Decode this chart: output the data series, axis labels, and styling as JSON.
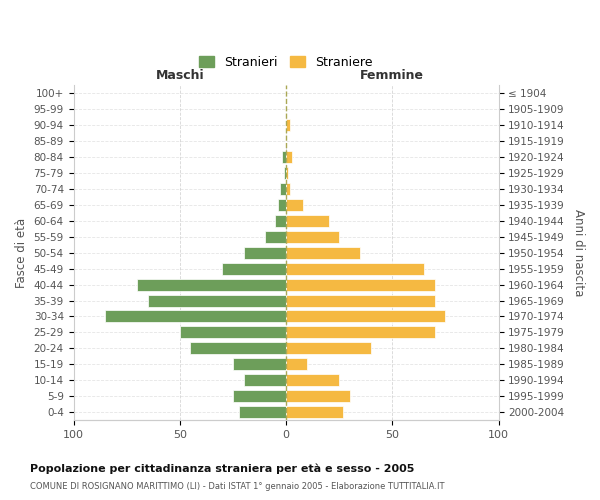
{
  "age_groups": [
    "100+",
    "95-99",
    "90-94",
    "85-89",
    "80-84",
    "75-79",
    "70-74",
    "65-69",
    "60-64",
    "55-59",
    "50-54",
    "45-49",
    "40-44",
    "35-39",
    "30-34",
    "25-29",
    "20-24",
    "15-19",
    "10-14",
    "5-9",
    "0-4"
  ],
  "birth_years": [
    "≤ 1904",
    "1905-1909",
    "1910-1914",
    "1915-1919",
    "1920-1924",
    "1925-1929",
    "1930-1934",
    "1935-1939",
    "1940-1944",
    "1945-1949",
    "1950-1954",
    "1955-1959",
    "1960-1964",
    "1965-1969",
    "1970-1974",
    "1975-1979",
    "1980-1984",
    "1985-1989",
    "1990-1994",
    "1995-1999",
    "2000-2004"
  ],
  "maschi": [
    0,
    0,
    0,
    0,
    2,
    1,
    3,
    4,
    5,
    10,
    20,
    30,
    70,
    65,
    85,
    50,
    45,
    25,
    20,
    25,
    22
  ],
  "femmine": [
    0,
    0,
    2,
    0,
    3,
    1,
    2,
    8,
    20,
    25,
    35,
    65,
    70,
    70,
    75,
    70,
    40,
    10,
    25,
    30,
    27
  ],
  "maschi_color": "#6d9e5a",
  "femmine_color": "#f5b942",
  "title_main": "Popolazione per cittadinanza straniera per età e sesso - 2005",
  "title_sub": "COMUNE DI ROSIGNANO MARITTIMO (LI) - Dati ISTAT 1° gennaio 2005 - Elaborazione TUTTITALIA.IT",
  "left_label": "Maschi",
  "right_label": "Femmine",
  "ylabel_left": "Fasce di età",
  "ylabel_right": "Anni di nascita",
  "legend_maschi": "Stranieri",
  "legend_femmine": "Straniere",
  "xlim": 100,
  "background_color": "#ffffff",
  "grid_color": "#cccccc"
}
